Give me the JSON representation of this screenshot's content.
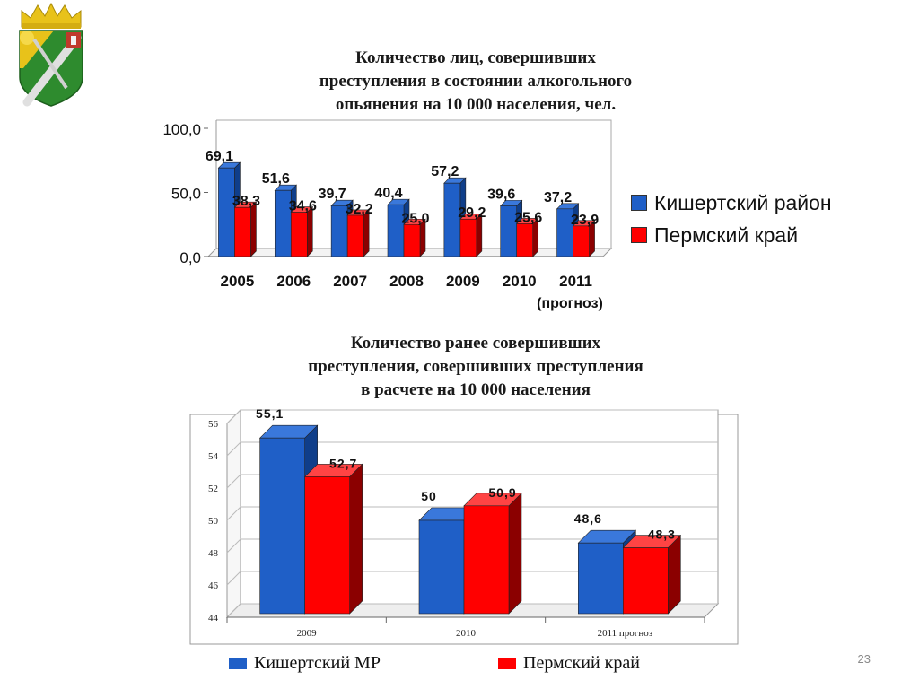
{
  "emblem": {
    "icon": "coat-of-arms-icon"
  },
  "colors": {
    "blue": "#1f5fc7",
    "blue_side": "#0f3e8a",
    "blue_top": "#3a78db",
    "red": "#ff0000",
    "red_side": "#8b0000",
    "red_top": "#ff4444"
  },
  "chart_data": [
    {
      "type": "bar",
      "title": "Количество лиц, совершивших\nпреступления в состоянии алкогольного\nопьянения на 10 000 населения, чел.",
      "categories": [
        "2005",
        "2006",
        "2007",
        "2008",
        "2009",
        "2010",
        "2011"
      ],
      "category_note": "(прогноз)",
      "series": [
        {
          "name": "Кишертский район",
          "values": [
            69.1,
            51.6,
            39.7,
            40.4,
            57.2,
            39.6,
            37.2
          ],
          "labels": [
            "69,1",
            "51,6",
            "39,7",
            "40,4",
            "57,2",
            "39,6",
            "37,2"
          ]
        },
        {
          "name": "Пермский край",
          "values": [
            38.3,
            34.6,
            32.2,
            25.0,
            29.2,
            25.6,
            23.9
          ],
          "labels": [
            "38,3",
            "34,6",
            "32,2",
            "25,0",
            "29,2",
            "25,6",
            "23,9"
          ]
        }
      ],
      "ylim": [
        0,
        100
      ],
      "yticks": [
        "0,0",
        "50,0",
        "100,0"
      ],
      "grid": false,
      "legend": "right"
    },
    {
      "type": "bar",
      "title": "Количество ранее совершивших\nпреступления, совершивших преступления\nв расчете на 10 000 населения",
      "categories": [
        "2009",
        "2010",
        "2011 прогноз"
      ],
      "series": [
        {
          "name": "Кишертский МР",
          "values": [
            55.1,
            50,
            48.6
          ],
          "labels": [
            "55,1",
            "50",
            "48,6"
          ]
        },
        {
          "name": "Пермский край",
          "values": [
            52.7,
            50.9,
            48.3
          ],
          "labels": [
            "52,7",
            "50,9",
            "48,3"
          ]
        }
      ],
      "ylim": [
        44,
        56
      ],
      "yticks": [
        "44",
        "46",
        "48",
        "50",
        "52",
        "54",
        "56"
      ],
      "grid": true,
      "legend": "bottom"
    }
  ],
  "page_number": "23"
}
